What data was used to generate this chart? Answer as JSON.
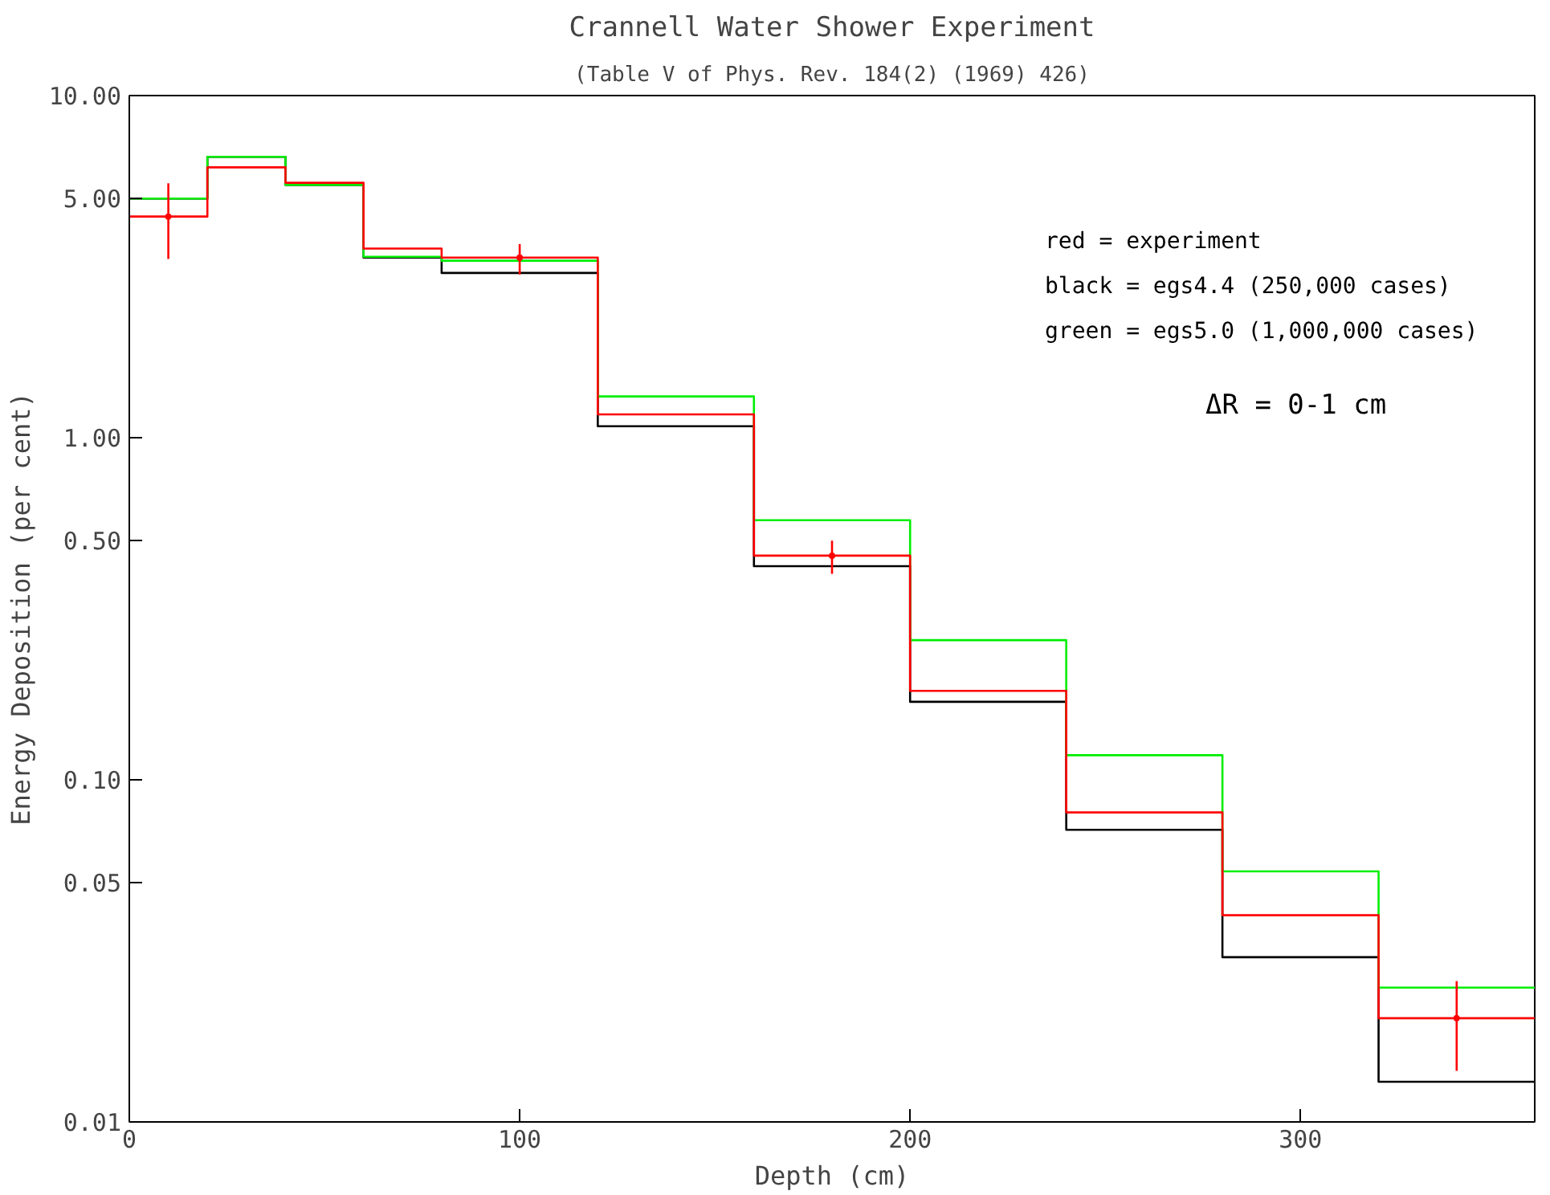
{
  "chart_data": {
    "type": "histogram",
    "title": "Crannell Water Shower Experiment",
    "subtitle": "(Table V of Phys. Rev. 184(2) (1969) 426)",
    "xlabel": "Depth (cm)",
    "ylabel": "Energy Deposition (per cent)",
    "bins": [
      0,
      20,
      40,
      60,
      80,
      120,
      160,
      200,
      240,
      280,
      320,
      360
    ],
    "series": [
      {
        "color": "#000000",
        "values": [
          5.0,
          6.62,
          5.48,
          3.36,
          3.03,
          1.08,
          0.421,
          0.169,
          0.0714,
          0.0303,
          0.0131
        ]
      },
      {
        "color": "#00ee00",
        "values": [
          5.0,
          6.62,
          5.48,
          3.38,
          3.29,
          1.32,
          0.574,
          0.256,
          0.118,
          0.054,
          0.0247
        ]
      },
      {
        "color": "#ff0000",
        "values": [
          4.43,
          6.17,
          5.56,
          3.57,
          3.36,
          1.17,
          0.452,
          0.182,
          0.0803,
          0.0402,
          0.0201
        ]
      },
      {
        "type": "scatter",
        "color": "#ff0000",
        "x": [
          10,
          100,
          180,
          340
        ],
        "values": [
          4.43,
          3.36,
          0.452,
          0.0201
        ],
        "errors": [
          [
            3.33,
            5.54
          ],
          [
            3.0,
            3.68
          ],
          [
            0.4,
            0.5
          ],
          [
            0.0141,
            0.0258
          ]
        ]
      }
    ],
    "log": "y",
    "xlim": [
      0,
      360
    ],
    "ylim": [
      0.01,
      10
    ],
    "xticks": [
      0,
      100,
      200,
      300
    ],
    "yticks": [
      {
        "value": 0.01,
        "label": "0.01"
      },
      {
        "value": 0.05,
        "label": "0.05"
      },
      {
        "value": 0.1,
        "label": "0.10"
      },
      {
        "value": 0.5,
        "label": "0.50"
      },
      {
        "value": 1,
        "label": "1.00"
      },
      {
        "value": 5,
        "label": "5.00"
      },
      {
        "value": 10,
        "label": "10.00"
      }
    ],
    "grid": false,
    "annotations": [
      "red   = experiment",
      "black = egs4.4 (250,000 cases)",
      "green = egs5.0 (1,000,000 cases)",
      "ΔR = 0-1 cm"
    ]
  }
}
